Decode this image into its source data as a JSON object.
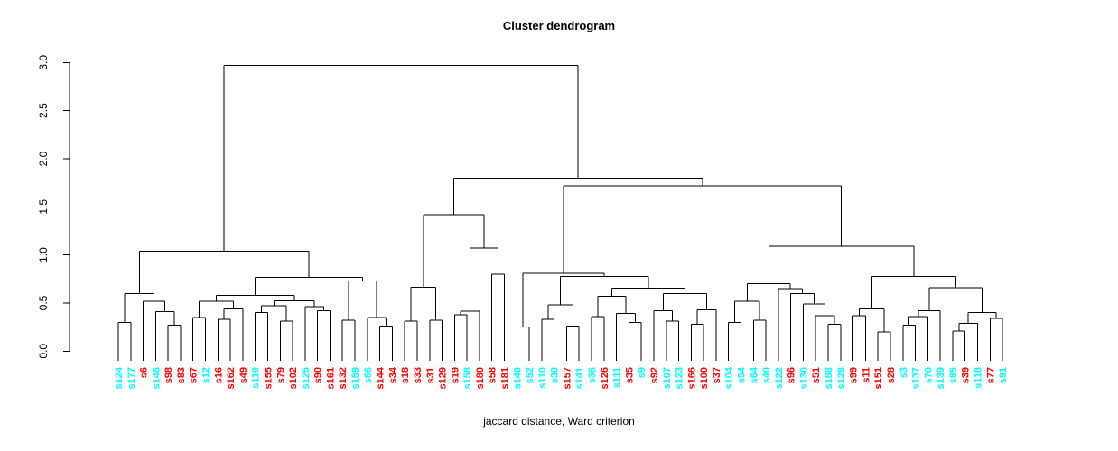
{
  "title": "Cluster dendrogram",
  "xlabel": "jaccard distance, Ward criterion",
  "colors": {
    "cyan": "#00FFFF",
    "red": "#FF0000",
    "line": "#000000",
    "background": "#FFFFFF"
  },
  "axis": {
    "tick_labels": [
      "0.0",
      "0.5",
      "1.0",
      "1.5",
      "2.0",
      "2.5",
      "3.0"
    ],
    "tick_values": [
      0.0,
      0.5,
      1.0,
      1.5,
      2.0,
      2.5,
      3.0
    ]
  },
  "chart_data": {
    "type": "dendrogram",
    "title": "Cluster dendrogram",
    "xlabel": "jaccard distance, Ward criterion",
    "ylim": [
      0.0,
      3.0
    ],
    "root_height": 2.97,
    "leaves": [
      {
        "label": "s124",
        "color": "cyan"
      },
      {
        "label": "s177",
        "color": "cyan"
      },
      {
        "label": "s6",
        "color": "red"
      },
      {
        "label": "s148",
        "color": "cyan"
      },
      {
        "label": "s98",
        "color": "red"
      },
      {
        "label": "s83",
        "color": "red"
      },
      {
        "label": "s67",
        "color": "red"
      },
      {
        "label": "s12",
        "color": "cyan"
      },
      {
        "label": "s16",
        "color": "red"
      },
      {
        "label": "s162",
        "color": "red"
      },
      {
        "label": "s49",
        "color": "red"
      },
      {
        "label": "s119",
        "color": "cyan"
      },
      {
        "label": "s155",
        "color": "red"
      },
      {
        "label": "s79",
        "color": "red"
      },
      {
        "label": "s102",
        "color": "red"
      },
      {
        "label": "s125",
        "color": "cyan"
      },
      {
        "label": "s90",
        "color": "red"
      },
      {
        "label": "s161",
        "color": "red"
      },
      {
        "label": "s132",
        "color": "red"
      },
      {
        "label": "s159",
        "color": "cyan"
      },
      {
        "label": "s66",
        "color": "cyan"
      },
      {
        "label": "s144",
        "color": "red"
      },
      {
        "label": "s34",
        "color": "red"
      },
      {
        "label": "s18",
        "color": "red"
      },
      {
        "label": "s33",
        "color": "red"
      },
      {
        "label": "s31",
        "color": "red"
      },
      {
        "label": "s129",
        "color": "red"
      },
      {
        "label": "s19",
        "color": "red"
      },
      {
        "label": "s158",
        "color": "cyan"
      },
      {
        "label": "s180",
        "color": "red"
      },
      {
        "label": "s58",
        "color": "red"
      },
      {
        "label": "s181",
        "color": "red"
      },
      {
        "label": "s140",
        "color": "cyan"
      },
      {
        "label": "s52",
        "color": "cyan"
      },
      {
        "label": "s110",
        "color": "cyan"
      },
      {
        "label": "s30",
        "color": "cyan"
      },
      {
        "label": "s157",
        "color": "red"
      },
      {
        "label": "s141",
        "color": "cyan"
      },
      {
        "label": "s36",
        "color": "cyan"
      },
      {
        "label": "s126",
        "color": "red"
      },
      {
        "label": "s111",
        "color": "cyan"
      },
      {
        "label": "s35",
        "color": "red"
      },
      {
        "label": "s9",
        "color": "cyan"
      },
      {
        "label": "s92",
        "color": "red"
      },
      {
        "label": "s107",
        "color": "cyan"
      },
      {
        "label": "s123",
        "color": "cyan"
      },
      {
        "label": "s166",
        "color": "red"
      },
      {
        "label": "s100",
        "color": "red"
      },
      {
        "label": "s37",
        "color": "red"
      },
      {
        "label": "s104",
        "color": "cyan"
      },
      {
        "label": "s54",
        "color": "cyan"
      },
      {
        "label": "s64",
        "color": "cyan"
      },
      {
        "label": "s40",
        "color": "cyan"
      },
      {
        "label": "s122",
        "color": "cyan"
      },
      {
        "label": "s96",
        "color": "red"
      },
      {
        "label": "s130",
        "color": "cyan"
      },
      {
        "label": "s51",
        "color": "red"
      },
      {
        "label": "s188",
        "color": "cyan"
      },
      {
        "label": "s128",
        "color": "cyan"
      },
      {
        "label": "s99",
        "color": "red"
      },
      {
        "label": "s11",
        "color": "red"
      },
      {
        "label": "s151",
        "color": "red"
      },
      {
        "label": "s28",
        "color": "red"
      },
      {
        "label": "s3",
        "color": "cyan"
      },
      {
        "label": "s137",
        "color": "cyan"
      },
      {
        "label": "s70",
        "color": "cyan"
      },
      {
        "label": "s139",
        "color": "cyan"
      },
      {
        "label": "s85",
        "color": "cyan"
      },
      {
        "label": "s39",
        "color": "red"
      },
      {
        "label": "s118",
        "color": "cyan"
      },
      {
        "label": "s77",
        "color": "red"
      },
      {
        "label": "s91",
        "color": "cyan"
      }
    ],
    "tree": [
      2.97,
      [
        1.04,
        [
          0.6,
          [
            0.3,
            0,
            1
          ],
          [
            0.52,
            2,
            [
              0.41,
              3,
              [
                0.27,
                4,
                5
              ]
            ]
          ]
        ],
        [
          0.765,
          [
            0.58,
            [
              0.52,
              [
                0.35,
                6,
                7
              ],
              [
                0.44,
                [
                  0.33,
                  8,
                  9
                ],
                10
              ]
            ],
            [
              0.525,
              [
                0.47,
                [
                  0.4,
                  11,
                  12
                ],
                [
                  0.31,
                  13,
                  14
                ]
              ],
              [
                0.46,
                15,
                [
                  0.42,
                  16,
                  17
                ]
              ]
            ]
          ],
          [
            0.73,
            [
              0.32,
              18,
              19
            ],
            [
              0.35,
              20,
              [
                0.26,
                21,
                22
              ]
            ]
          ]
        ]
      ],
      [
        1.8,
        [
          1.42,
          [
            0.665,
            [
              0.31,
              23,
              24
            ],
            [
              0.32,
              25,
              26
            ]
          ],
          [
            1.07,
            [
              0.415,
              [
                0.38,
                27,
                28
              ],
              29
            ],
            [
              0.8,
              30,
              31
            ]
          ]
        ],
        [
          1.72,
          [
            0.81,
            [
              0.25,
              32,
              33
            ],
            [
              0.775,
              [
                0.48,
                [
                  0.33,
                  34,
                  35
                ],
                [
                  0.26,
                  36,
                  37
                ]
              ],
              [
                0.655,
                [
                  0.57,
                  [
                    0.36,
                    38,
                    39
                  ],
                  [
                    0.39,
                    40,
                    [
                      0.3,
                      41,
                      42
                    ]
                  ]
                ],
                [
                  0.6,
                  [
                    0.42,
                    43,
                    [
                      0.31,
                      44,
                      45
                    ]
                  ],
                  [
                    0.43,
                    [
                      0.28,
                      46,
                      47
                    ],
                    48
                  ]
                ]
              ]
            ]
          ],
          [
            1.09,
            [
              0.7,
              [
                0.52,
                [
                  0.3,
                  49,
                  50
                ],
                [
                  0.32,
                  51,
                  52
                ]
              ],
              [
                0.65,
                53,
                [
                  0.6,
                  54,
                  [
                    0.49,
                    55,
                    [
                      0.37,
                      56,
                      [
                        0.28,
                        57,
                        58
                      ]
                    ]
                  ]
                ]
              ]
            ],
            [
              0.775,
              [
                0.44,
                [
                  0.37,
                  59,
                  60
                ],
                [
                  0.2,
                  61,
                  62
                ]
              ],
              [
                0.66,
                [
                  0.42,
                  [
                    0.36,
                    [
                      0.27,
                      63,
                      64
                    ],
                    65
                  ],
                  66
                ],
                [
                  0.4,
                  [
                    0.29,
                    [
                      0.21,
                      67,
                      68
                    ],
                    69
                  ],
                  [
                    0.34,
                    70,
                    71
                  ]
                ]
              ]
            ]
          ]
        ]
      ]
    ]
  }
}
